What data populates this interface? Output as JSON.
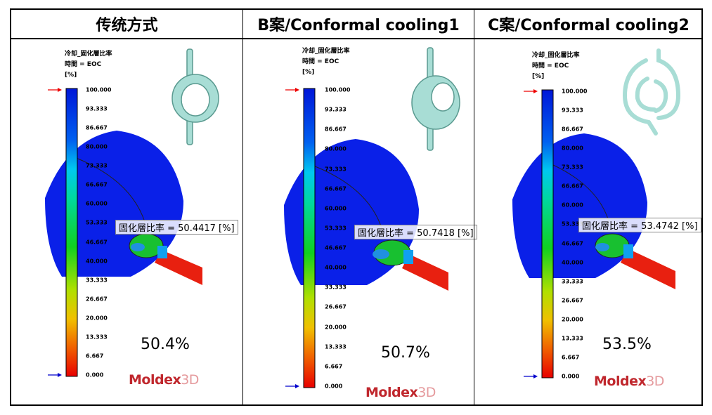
{
  "columns": [
    {
      "title": "传统方式",
      "probe": "固化層比率 = 50.4417 [%]",
      "percent": "50.4%"
    },
    {
      "title": "B案/Conformal cooling1",
      "probe": "固化層比率 = 50.7418 [%]",
      "percent": "50.7%"
    },
    {
      "title": "C案/Conformal cooling2",
      "probe": "固化層比率 = 53.4742 [%]",
      "percent": "53.5%"
    }
  ],
  "legend": {
    "line1": "冷却_固化層比率",
    "line2": "時間 = EOC",
    "unit": "[%]",
    "ticks": [
      "100.000",
      "93.333",
      "86.667",
      "80.000",
      "73.333",
      "66.667",
      "60.000",
      "53.333",
      "46.667",
      "40.000",
      "33.333",
      "26.667",
      "20.000",
      "13.333",
      "6.667",
      "0.000"
    ]
  },
  "logo": {
    "main": "Moldex",
    "suffix": "3D"
  }
}
